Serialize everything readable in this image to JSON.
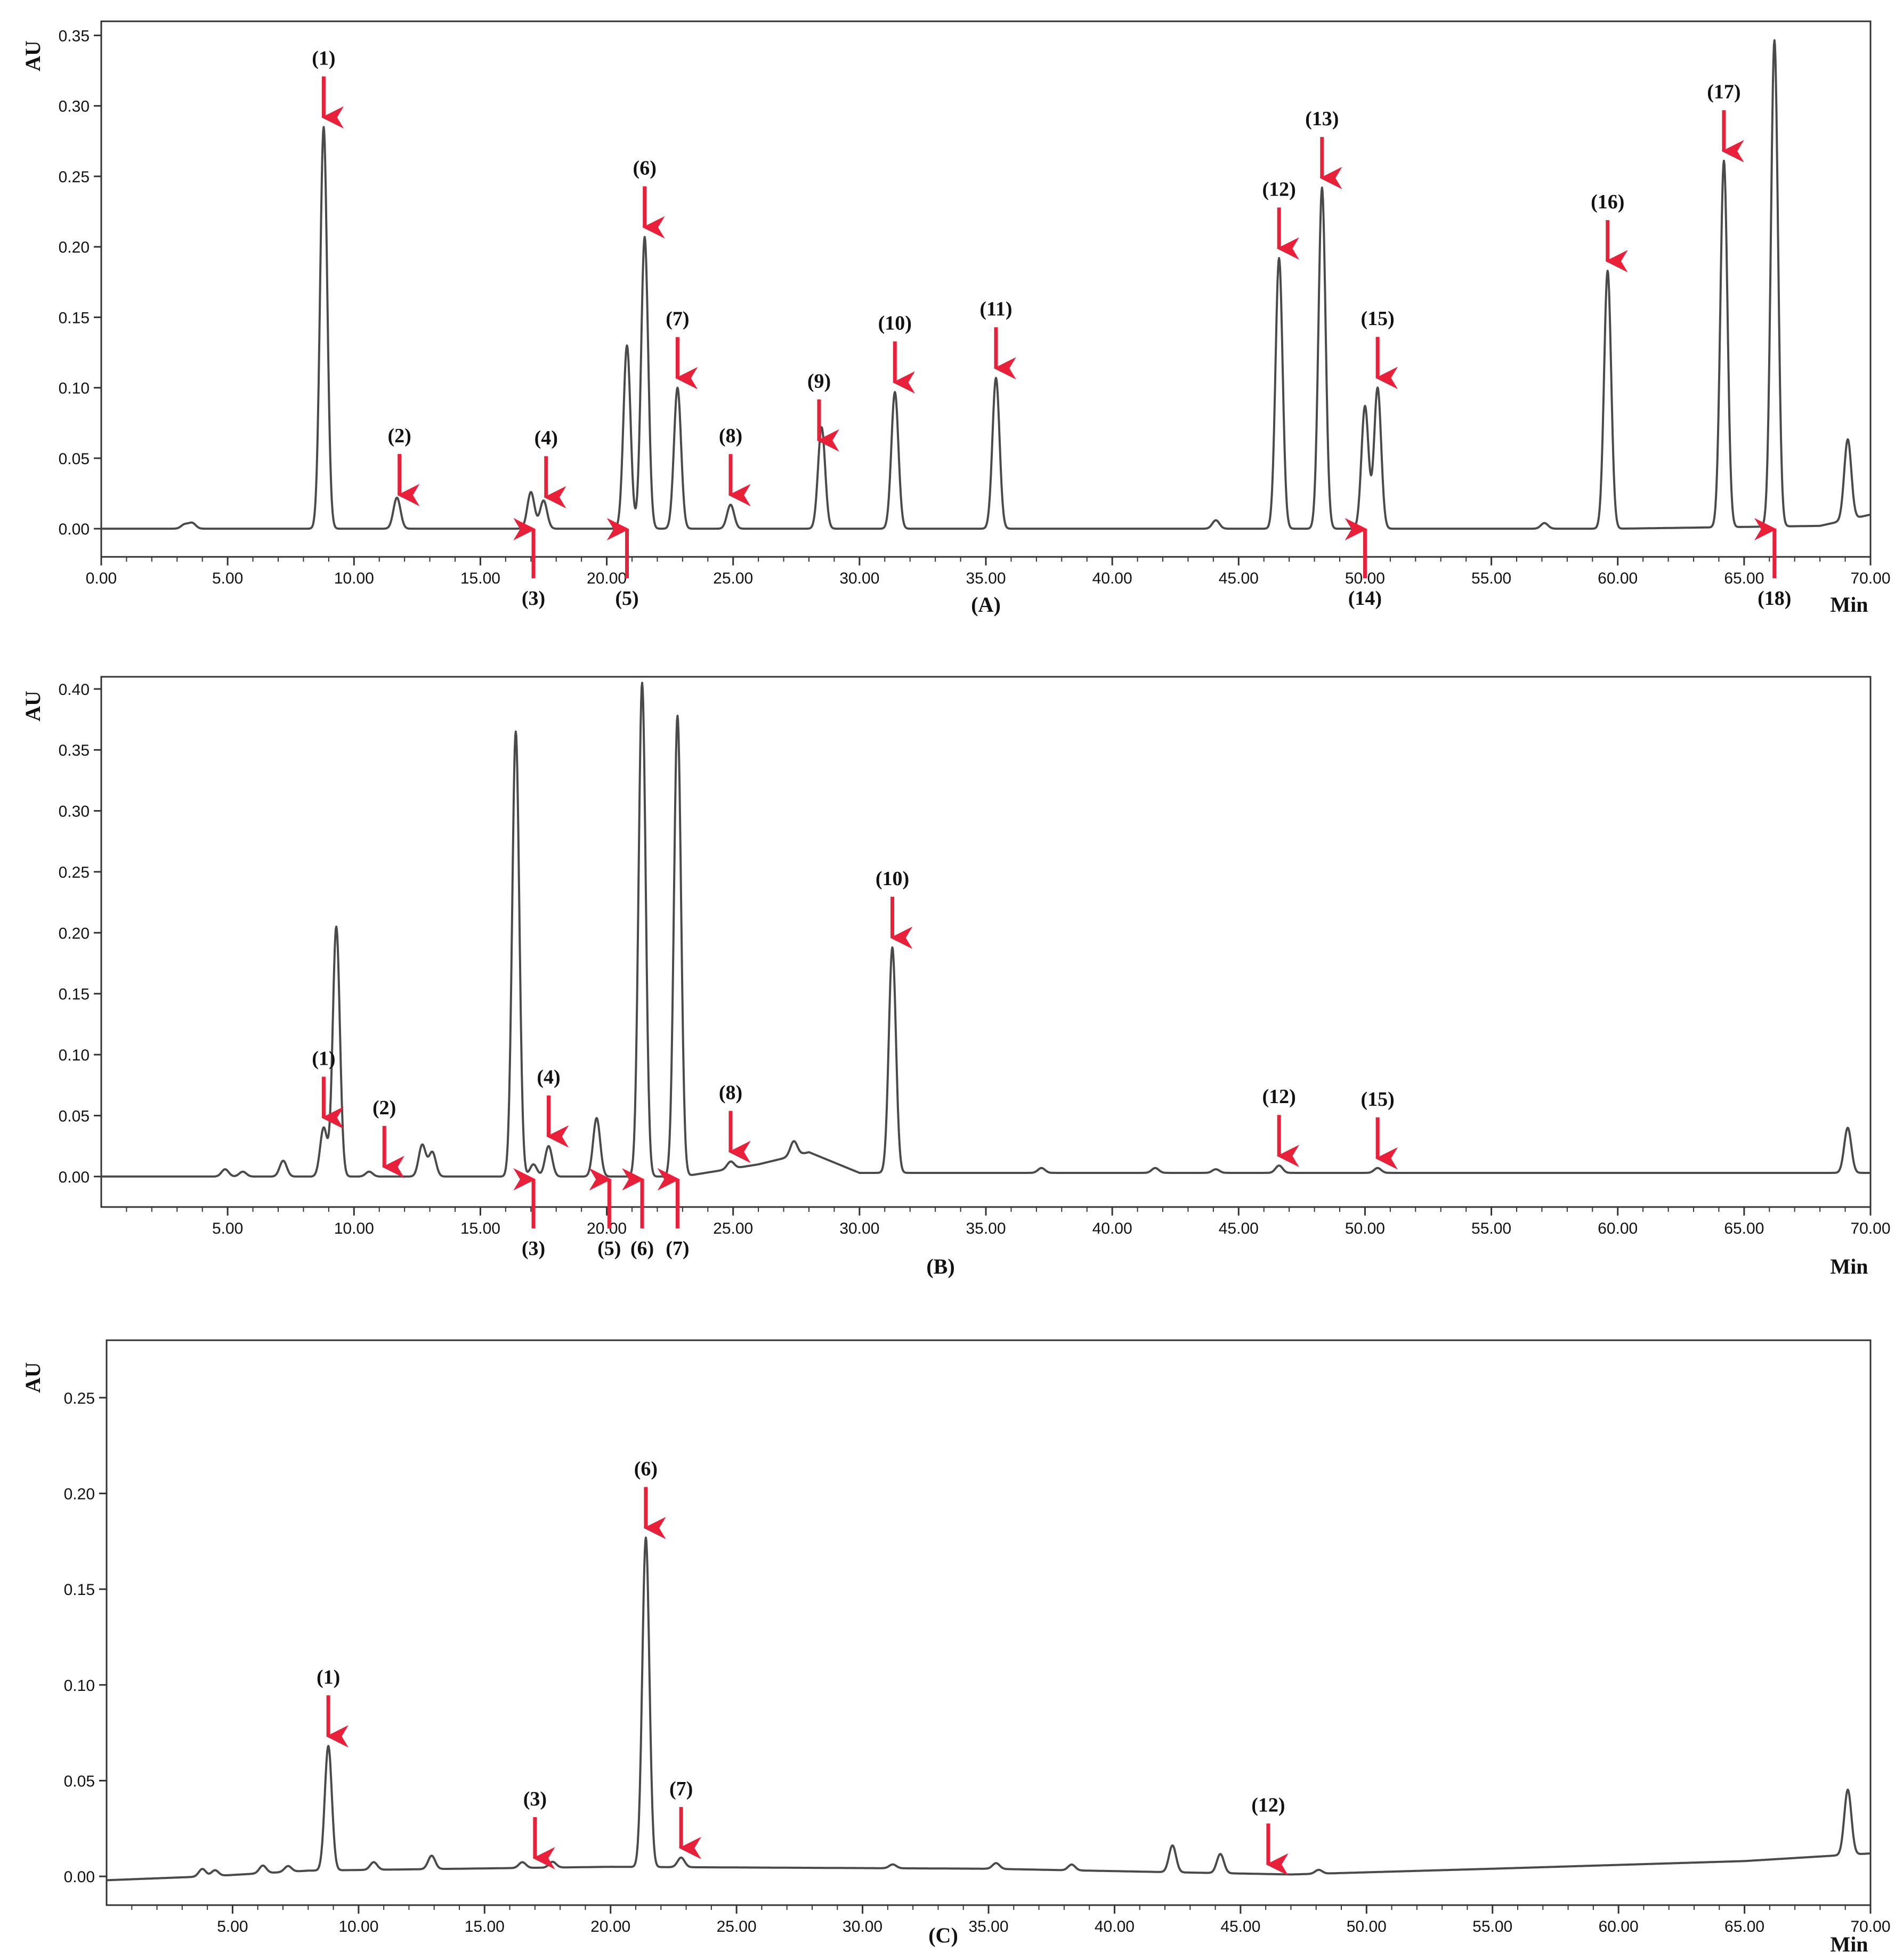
{
  "chart_data": [
    {
      "type": "line",
      "panel_label": "(A)",
      "ylabel": "AU",
      "xlabel": "Min",
      "xlim": [
        0,
        70
      ],
      "ylim": [
        -0.02,
        0.36
      ],
      "x_ticks": [
        "0.00",
        "5.00",
        "10.00",
        "15.00",
        "20.00",
        "25.00",
        "30.00",
        "35.00",
        "40.00",
        "45.00",
        "50.00",
        "55.00",
        "60.00",
        "65.00",
        "70.00"
      ],
      "y_ticks": [
        "0.00",
        "0.05",
        "0.10",
        "0.15",
        "0.20",
        "0.25",
        "0.30",
        "0.35"
      ],
      "baseline": [
        [
          0,
          0.0
        ],
        [
          60,
          0.0
        ],
        [
          68,
          0.002
        ],
        [
          70,
          0.01
        ]
      ],
      "peaks": [
        {
          "t": 3.3,
          "h": 0.003
        },
        {
          "t": 3.6,
          "h": 0.004
        },
        {
          "t": 8.8,
          "h": 0.285
        },
        {
          "t": 11.7,
          "h": 0.022
        },
        {
          "t": 17.0,
          "h": 0.026
        },
        {
          "t": 17.5,
          "h": 0.02
        },
        {
          "t": 20.8,
          "h": 0.13
        },
        {
          "t": 21.5,
          "h": 0.207
        },
        {
          "t": 22.8,
          "h": 0.1
        },
        {
          "t": 24.9,
          "h": 0.017
        },
        {
          "t": 28.5,
          "h": 0.072
        },
        {
          "t": 31.4,
          "h": 0.097
        },
        {
          "t": 35.4,
          "h": 0.107
        },
        {
          "t": 44.1,
          "h": 0.006
        },
        {
          "t": 46.6,
          "h": 0.192
        },
        {
          "t": 48.3,
          "h": 0.242
        },
        {
          "t": 50.0,
          "h": 0.087
        },
        {
          "t": 50.5,
          "h": 0.1
        },
        {
          "t": 57.1,
          "h": 0.004
        },
        {
          "t": 59.6,
          "h": 0.183
        },
        {
          "t": 64.2,
          "h": 0.26
        },
        {
          "t": 66.2,
          "h": 0.345
        },
        {
          "t": 69.1,
          "h": 0.057
        }
      ],
      "annotations": [
        {
          "label": "(1)",
          "t": 8.8,
          "dir": "down"
        },
        {
          "label": "(2)",
          "t": 11.8,
          "dir": "down"
        },
        {
          "label": "(3)",
          "t": 17.1,
          "dir": "up"
        },
        {
          "label": "(4)",
          "t": 17.6,
          "dir": "down"
        },
        {
          "label": "(5)",
          "t": 20.8,
          "dir": "up"
        },
        {
          "label": "(6)",
          "t": 21.5,
          "dir": "down"
        },
        {
          "label": "(7)",
          "t": 22.8,
          "dir": "down"
        },
        {
          "label": "(8)",
          "t": 24.9,
          "dir": "down"
        },
        {
          "label": "(9)",
          "t": 28.4,
          "dir": "down"
        },
        {
          "label": "(10)",
          "t": 31.4,
          "dir": "down"
        },
        {
          "label": "(11)",
          "t": 35.4,
          "dir": "down"
        },
        {
          "label": "(12)",
          "t": 46.6,
          "dir": "down"
        },
        {
          "label": "(13)",
          "t": 48.3,
          "dir": "down"
        },
        {
          "label": "(14)",
          "t": 50.0,
          "dir": "up"
        },
        {
          "label": "(15)",
          "t": 50.5,
          "dir": "down"
        },
        {
          "label": "(16)",
          "t": 59.6,
          "dir": "down"
        },
        {
          "label": "(17)",
          "t": 64.2,
          "dir": "down"
        },
        {
          "label": "(18)",
          "t": 66.2,
          "dir": "up"
        }
      ]
    },
    {
      "type": "line",
      "panel_label": "(B)",
      "ylabel": "AU",
      "xlabel": "Min",
      "xlim": [
        0,
        70
      ],
      "ylim": [
        -0.025,
        0.41
      ],
      "x_ticks": [
        "5.00",
        "10.00",
        "15.00",
        "20.00",
        "25.00",
        "30.00",
        "35.00",
        "40.00",
        "45.00",
        "50.00",
        "55.00",
        "60.00",
        "65.00",
        "70.00"
      ],
      "y_ticks": [
        "0.00",
        "0.05",
        "0.10",
        "0.15",
        "0.20",
        "0.25",
        "0.30",
        "0.35",
        "0.40"
      ],
      "baseline": [
        [
          0,
          0.0
        ],
        [
          23,
          0.0
        ],
        [
          26,
          0.01
        ],
        [
          28,
          0.02
        ],
        [
          30,
          0.003
        ],
        [
          70,
          0.003
        ]
      ],
      "peaks": [
        {
          "t": 4.9,
          "h": 0.006
        },
        {
          "t": 5.6,
          "h": 0.004
        },
        {
          "t": 7.2,
          "h": 0.013
        },
        {
          "t": 8.8,
          "h": 0.04
        },
        {
          "t": 9.3,
          "h": 0.205
        },
        {
          "t": 10.6,
          "h": 0.004
        },
        {
          "t": 12.7,
          "h": 0.026
        },
        {
          "t": 13.1,
          "h": 0.02
        },
        {
          "t": 16.4,
          "h": 0.365
        },
        {
          "t": 17.1,
          "h": 0.01
        },
        {
          "t": 17.7,
          "h": 0.025
        },
        {
          "t": 19.6,
          "h": 0.048
        },
        {
          "t": 21.4,
          "h": 0.405
        },
        {
          "t": 22.8,
          "h": 0.378
        },
        {
          "t": 24.9,
          "h": 0.006
        },
        {
          "t": 27.4,
          "h": 0.012
        },
        {
          "t": 31.3,
          "h": 0.185
        },
        {
          "t": 37.2,
          "h": 0.004
        },
        {
          "t": 41.7,
          "h": 0.004
        },
        {
          "t": 44.1,
          "h": 0.003
        },
        {
          "t": 46.6,
          "h": 0.006
        },
        {
          "t": 50.5,
          "h": 0.004
        },
        {
          "t": 69.1,
          "h": 0.037
        }
      ],
      "annotations": [
        {
          "label": "(1)",
          "t": 8.8,
          "dir": "down"
        },
        {
          "label": "(2)",
          "t": 11.2,
          "dir": "down"
        },
        {
          "label": "(3)",
          "t": 17.1,
          "dir": "up"
        },
        {
          "label": "(4)",
          "t": 17.7,
          "dir": "down"
        },
        {
          "label": "(5)",
          "t": 20.1,
          "dir": "up"
        },
        {
          "label": "(6)",
          "t": 21.4,
          "dir": "up"
        },
        {
          "label": "(7)",
          "t": 22.8,
          "dir": "up"
        },
        {
          "label": "(8)",
          "t": 24.9,
          "dir": "down"
        },
        {
          "label": "(10)",
          "t": 31.3,
          "dir": "down"
        },
        {
          "label": "(12)",
          "t": 46.6,
          "dir": "down"
        },
        {
          "label": "(15)",
          "t": 50.5,
          "dir": "down"
        }
      ]
    },
    {
      "type": "line",
      "panel_label": "(C)",
      "ylabel": "AU",
      "xlabel": "Min",
      "xlim": [
        0,
        70
      ],
      "ylim": [
        -0.015,
        0.28
      ],
      "x_ticks": [
        "5.00",
        "10.00",
        "15.00",
        "20.00",
        "25.00",
        "30.00",
        "35.00",
        "40.00",
        "45.00",
        "50.00",
        "55.00",
        "60.00",
        "65.00",
        "70.00"
      ],
      "y_ticks": [
        "0.00",
        "0.05",
        "0.10",
        "0.15",
        "0.20",
        "0.25"
      ],
      "baseline": [
        [
          0,
          -0.002
        ],
        [
          4,
          0.0
        ],
        [
          8,
          0.003
        ],
        [
          20,
          0.005
        ],
        [
          35,
          0.004
        ],
        [
          47,
          0.001
        ],
        [
          55,
          0.004
        ],
        [
          65,
          0.008
        ],
        [
          70,
          0.012
        ]
      ],
      "peaks": [
        {
          "t": 3.8,
          "h": 0.004
        },
        {
          "t": 4.3,
          "h": 0.003
        },
        {
          "t": 6.2,
          "h": 0.004
        },
        {
          "t": 7.2,
          "h": 0.003
        },
        {
          "t": 8.8,
          "h": 0.065
        },
        {
          "t": 10.6,
          "h": 0.004
        },
        {
          "t": 12.9,
          "h": 0.007
        },
        {
          "t": 16.5,
          "h": 0.003
        },
        {
          "t": 17.7,
          "h": 0.003
        },
        {
          "t": 21.4,
          "h": 0.172
        },
        {
          "t": 22.8,
          "h": 0.005
        },
        {
          "t": 31.2,
          "h": 0.002
        },
        {
          "t": 35.3,
          "h": 0.003
        },
        {
          "t": 38.3,
          "h": 0.003
        },
        {
          "t": 42.3,
          "h": 0.014
        },
        {
          "t": 44.2,
          "h": 0.01
        },
        {
          "t": 48.1,
          "h": 0.002
        },
        {
          "t": 69.1,
          "h": 0.034
        }
      ],
      "annotations": [
        {
          "label": "(1)",
          "t": 8.8,
          "dir": "down"
        },
        {
          "label": "(3)",
          "t": 17.0,
          "dir": "down"
        },
        {
          "label": "(6)",
          "t": 21.4,
          "dir": "down"
        },
        {
          "label": "(7)",
          "t": 22.8,
          "dir": "down"
        },
        {
          "label": "(12)",
          "t": 46.1,
          "dir": "down"
        }
      ]
    }
  ],
  "colors": {
    "trace": "#4a4a4a",
    "arrow": "#e8203a",
    "axis": "#333333",
    "text": "#111111"
  }
}
